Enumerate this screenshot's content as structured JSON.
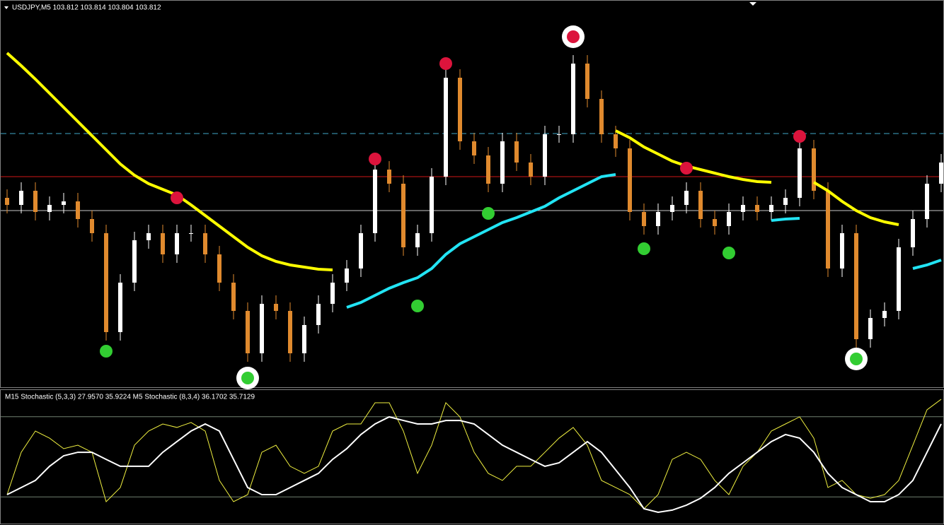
{
  "chart_data": [
    {
      "type": "candlestick",
      "title": "USDJPY,M5 103.812 103.814 103.804 103.812",
      "ylim": [
        103.497,
        104.037
      ],
      "bull_color": "#ffffff",
      "bear_color": "#e08a2e",
      "background": "#000000",
      "open": [
        103.762,
        103.752,
        103.772,
        103.742,
        103.752,
        103.757,
        103.732,
        103.712,
        103.572,
        103.642,
        103.702,
        103.712,
        103.682,
        103.712,
        103.712,
        103.682,
        103.642,
        103.602,
        103.542,
        103.612,
        103.602,
        103.542,
        103.582,
        103.612,
        103.642,
        103.662,
        103.712,
        103.802,
        103.782,
        103.692,
        103.712,
        103.792,
        103.932,
        103.842,
        103.822,
        103.782,
        103.842,
        103.812,
        103.792,
        103.852,
        103.852,
        103.952,
        103.902,
        103.852,
        103.832,
        103.742,
        103.722,
        103.742,
        103.752,
        103.772,
        103.732,
        103.722,
        103.742,
        103.752,
        103.742,
        103.752,
        103.762,
        103.832,
        103.772,
        103.662,
        103.712,
        103.562,
        103.592,
        103.602,
        103.692,
        103.732,
        103.782
      ],
      "high": [
        103.774,
        103.784,
        103.784,
        103.764,
        103.769,
        103.769,
        103.744,
        103.724,
        103.654,
        103.714,
        103.724,
        103.724,
        103.724,
        103.724,
        103.724,
        103.694,
        103.654,
        103.614,
        103.624,
        103.624,
        103.614,
        103.594,
        103.624,
        103.654,
        103.674,
        103.724,
        103.814,
        103.814,
        103.794,
        103.724,
        103.804,
        103.944,
        103.944,
        103.854,
        103.834,
        103.854,
        103.854,
        103.824,
        103.864,
        103.864,
        103.964,
        103.964,
        103.914,
        103.864,
        103.844,
        103.754,
        103.754,
        103.764,
        103.784,
        103.784,
        103.744,
        103.754,
        103.764,
        103.764,
        103.764,
        103.774,
        103.844,
        103.844,
        103.784,
        103.724,
        103.724,
        103.604,
        103.614,
        103.704,
        103.744,
        103.794,
        103.824
      ],
      "low": [
        103.74,
        103.74,
        103.73,
        103.73,
        103.74,
        103.72,
        103.7,
        103.56,
        103.56,
        103.63,
        103.69,
        103.67,
        103.67,
        103.7,
        103.67,
        103.63,
        103.59,
        103.53,
        103.53,
        103.59,
        103.53,
        103.53,
        103.57,
        103.6,
        103.63,
        103.65,
        103.7,
        103.77,
        103.68,
        103.68,
        103.7,
        103.78,
        103.83,
        103.81,
        103.77,
        103.77,
        103.8,
        103.78,
        103.78,
        103.84,
        103.84,
        103.89,
        103.84,
        103.82,
        103.73,
        103.71,
        103.71,
        103.73,
        103.74,
        103.72,
        103.71,
        103.71,
        103.73,
        103.73,
        103.73,
        103.74,
        103.75,
        103.76,
        103.65,
        103.65,
        103.55,
        103.55,
        103.58,
        103.59,
        103.68,
        103.72,
        103.77
      ],
      "close": [
        103.752,
        103.772,
        103.742,
        103.752,
        103.757,
        103.732,
        103.712,
        103.572,
        103.642,
        103.702,
        103.712,
        103.682,
        103.712,
        103.712,
        103.682,
        103.642,
        103.602,
        103.542,
        103.612,
        103.602,
        103.542,
        103.582,
        103.612,
        103.642,
        103.662,
        103.712,
        103.802,
        103.782,
        103.692,
        103.712,
        103.792,
        103.932,
        103.842,
        103.822,
        103.782,
        103.842,
        103.812,
        103.792,
        103.852,
        103.852,
        103.952,
        103.902,
        103.852,
        103.832,
        103.742,
        103.722,
        103.742,
        103.752,
        103.772,
        103.732,
        103.722,
        103.742,
        103.752,
        103.742,
        103.752,
        103.762,
        103.832,
        103.772,
        103.662,
        103.712,
        103.562,
        103.592,
        103.602,
        103.692,
        103.732,
        103.782,
        103.812
      ],
      "overlays": [
        {
          "color": "#ffff00",
          "width": 4,
          "values": [
            103.967,
            103.949,
            103.93,
            103.91,
            103.89,
            103.87,
            103.85,
            103.83,
            103.81,
            103.794,
            103.782,
            103.774,
            103.766,
            103.752,
            103.737,
            103.722,
            103.707,
            103.692,
            103.68,
            103.672,
            103.667,
            103.664,
            103.661,
            103.66,
            null,
            null,
            null,
            null,
            null,
            null,
            null,
            null,
            null,
            null,
            null,
            null,
            null,
            null,
            null,
            null,
            null,
            null,
            null,
            103.857,
            103.847,
            103.834,
            103.824,
            103.814,
            103.807,
            103.802,
            103.797,
            103.792,
            103.788,
            103.785,
            103.784,
            null,
            null,
            103.784,
            103.772,
            103.757,
            103.744,
            103.734,
            103.728,
            103.724,
            null,
            null,
            null
          ]
        },
        {
          "color": "#22e4f4",
          "width": 4,
          "values": [
            null,
            null,
            null,
            null,
            null,
            null,
            null,
            null,
            null,
            null,
            null,
            null,
            null,
            null,
            null,
            null,
            null,
            null,
            null,
            null,
            null,
            null,
            null,
            null,
            103.607,
            103.614,
            103.624,
            103.634,
            103.642,
            103.649,
            103.662,
            103.682,
            103.697,
            103.707,
            103.717,
            103.727,
            103.734,
            103.742,
            103.75,
            103.762,
            103.772,
            103.782,
            103.792,
            103.795,
            null,
            null,
            null,
            null,
            null,
            null,
            null,
            null,
            null,
            null,
            103.73,
            103.732,
            103.733,
            null,
            null,
            null,
            null,
            null,
            null,
            null,
            103.662,
            103.667,
            103.674
          ]
        }
      ],
      "levels": [
        {
          "value": 103.853,
          "color": "#3fa9c9",
          "dash": true
        },
        {
          "value": 103.792,
          "color": "#d01818",
          "dash": false
        },
        {
          "value": 103.744,
          "color": "#c8c8c8",
          "dash": false
        }
      ],
      "signals": [
        {
          "color": "#dc143c",
          "index": 12,
          "value": 103.762,
          "circled": false
        },
        {
          "color": "#dc143c",
          "index": 26,
          "value": 103.817,
          "circled": false
        },
        {
          "color": "#dc143c",
          "index": 31,
          "value": 103.952,
          "circled": false
        },
        {
          "color": "#dc143c",
          "index": 40,
          "value": 103.99,
          "circled": true
        },
        {
          "color": "#dc143c",
          "index": 48,
          "value": 103.804,
          "circled": false
        },
        {
          "color": "#dc143c",
          "index": 56,
          "value": 103.849,
          "circled": false
        },
        {
          "color": "#32cd32",
          "index": 7,
          "value": 103.545,
          "circled": false
        },
        {
          "color": "#32cd32",
          "index": 17,
          "value": 103.507,
          "circled": true
        },
        {
          "color": "#32cd32",
          "index": 29,
          "value": 103.609,
          "circled": false
        },
        {
          "color": "#32cd32",
          "index": 34,
          "value": 103.74,
          "circled": false
        },
        {
          "color": "#32cd32",
          "index": 45,
          "value": 103.69,
          "circled": false
        },
        {
          "color": "#32cd32",
          "index": 51,
          "value": 103.684,
          "circled": false
        },
        {
          "color": "#32cd32",
          "index": 60,
          "value": 103.534,
          "circled": true
        }
      ]
    },
    {
      "type": "line",
      "title": "M15 Stochastic (5,3,3) 27.9570 35.9224  M5 Stochastic (8,3,4) 36.1702 35.7129",
      "ylim": [
        0,
        100
      ],
      "levels": [
        80,
        20
      ],
      "series": [
        {
          "color": "#f0f040",
          "width": 1,
          "values": [
            21.7,
            53.4,
            69.3,
            64.0,
            56.1,
            58.7,
            53.4,
            16.4,
            27.0,
            58.7,
            69.3,
            74.6,
            72.0,
            75.7,
            69.3,
            32.3,
            16.4,
            21.7,
            53.4,
            58.7,
            42.9,
            37.6,
            42.9,
            69.3,
            74.6,
            74.6,
            90.5,
            90.5,
            69.3,
            37.6,
            58.7,
            90.5,
            79.9,
            53.4,
            37.6,
            32.3,
            42.9,
            42.9,
            53.4,
            64.0,
            72.0,
            58.7,
            32.3,
            27.0,
            21.7,
            11.1,
            21.7,
            48.1,
            53.4,
            48.1,
            32.3,
            21.7,
            42.9,
            53.4,
            69.3,
            74.6,
            79.9,
            64.0,
            27.0,
            32.3,
            21.7,
            19.0,
            21.7,
            32.3,
            58.7,
            85.2,
            93.1
          ]
        },
        {
          "color": "#ffffff",
          "width": 2,
          "values": [
            21.7,
            27.0,
            32.3,
            42.9,
            50.8,
            53.4,
            53.4,
            48.1,
            42.9,
            42.9,
            42.9,
            53.4,
            61.4,
            69.3,
            74.6,
            69.3,
            48.1,
            27.0,
            21.7,
            21.7,
            27.0,
            32.3,
            37.6,
            48.1,
            56.1,
            66.7,
            74.6,
            79.9,
            77.2,
            74.6,
            74.6,
            77.2,
            77.2,
            74.6,
            66.7,
            58.7,
            53.4,
            48.1,
            42.9,
            45.5,
            53.4,
            61.4,
            53.4,
            40.2,
            27.0,
            11.1,
            8.5,
            10.1,
            13.8,
            19.0,
            27.0,
            37.6,
            45.5,
            53.4,
            61.4,
            66.7,
            64.0,
            53.4,
            37.6,
            27.0,
            21.7,
            16.4,
            16.4,
            21.7,
            32.3,
            53.4,
            74.6
          ]
        }
      ]
    }
  ]
}
